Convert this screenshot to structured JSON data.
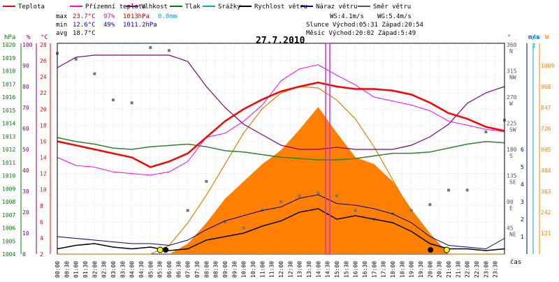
{
  "legend": [
    {
      "key": "temp",
      "label": "Teplota",
      "color": "#ff0000"
    },
    {
      "key": "dew",
      "label": "Přízemní teplota",
      "color": "#ff00ff"
    },
    {
      "key": "hum",
      "label": "Vlhkost",
      "color": "#800080"
    },
    {
      "key": "press",
      "label": "Tlak",
      "color": "#008000"
    },
    {
      "key": "rain",
      "label": "Srážky",
      "color": "#00aacc"
    },
    {
      "key": "wind",
      "label": "Rychlost větru",
      "color": "#000000"
    },
    {
      "key": "gust",
      "label": "Náraz větru",
      "color": "#000080"
    },
    {
      "key": "dir",
      "label": "Směr větru",
      "color": "#555555"
    }
  ],
  "stats": {
    "max": {
      "label": "max",
      "temp": "23.7°C",
      "hum": "97%",
      "press": "1013hPa",
      "rain": "0.0mm"
    },
    "min": {
      "label": "min",
      "temp": "12.6°C",
      "hum": "49%",
      "press": "1011.2hPa"
    },
    "avg": {
      "label": "avg",
      "temp": "18.7°C"
    }
  },
  "wind_info": {
    "ws": "WS:4.1m/s",
    "wg": "WG:5.4m/s"
  },
  "sun": {
    "text": "Slunce Východ:05:31  Západ:20:54"
  },
  "moon": {
    "text": "Měsíc  Východ:20:02  Západ:5:49"
  },
  "title": "27.7.2010",
  "axes": {
    "hpa_unit": "hPa",
    "pct_unit": "%",
    "degc_unit": "°C",
    "deg_unit": "°",
    "ms_unit": "m/s",
    "mm_unit": "mm",
    "w_unit": "W",
    "x_unit": "čas",
    "hpa_ticks": [
      "1020",
      "1019",
      "1018",
      "1017",
      "1016",
      "1015",
      "1014",
      "1013",
      "1012",
      "1011",
      "1010",
      "1009",
      "1008",
      "1007",
      "1006",
      "1005",
      "1004"
    ],
    "pct_ticks": [
      "100",
      "90",
      "80",
      "70",
      "60",
      "50",
      "40",
      "30",
      "20",
      "10",
      "0"
    ],
    "degc_ticks": [
      "28",
      "26",
      "24",
      "22",
      "20",
      "18",
      "16",
      "14",
      "12",
      "10",
      "8",
      "6",
      "4",
      "2"
    ],
    "dir_ticks": [
      {
        "v": "360",
        "n": "N",
        "deg": 360
      },
      {
        "v": "315",
        "n": "NW",
        "deg": 315
      },
      {
        "v": "270",
        "n": "W",
        "deg": 270
      },
      {
        "v": "225",
        "n": "SW",
        "deg": 225
      },
      {
        "v": "180",
        "n": "S",
        "deg": 180
      },
      {
        "v": "135",
        "n": "SE",
        "deg": 135
      },
      {
        "v": "90",
        "n": "E",
        "deg": 90
      },
      {
        "v": "45",
        "n": "NE",
        "deg": 45
      }
    ],
    "ms_ticks": [
      "6",
      "5",
      "4",
      "3",
      "2",
      "1"
    ],
    "mm_ticks": [
      "1"
    ],
    "w_ticks": [
      "1089",
      "968",
      "847",
      "726",
      "605",
      "484",
      "363",
      "242",
      "121"
    ],
    "x_ticks": [
      "00:00",
      "00:30",
      "01:00",
      "01:30",
      "02:00",
      "02:30",
      "03:00",
      "03:30",
      "04:00",
      "04:30",
      "05:00",
      "05:30",
      "06:00",
      "06:30",
      "07:00",
      "07:30",
      "08:00",
      "08:30",
      "09:00",
      "09:30",
      "10:00",
      "10:30",
      "11:00",
      "11:30",
      "12:00",
      "12:30",
      "13:00",
      "13:30",
      "14:00",
      "14:30",
      "15:00",
      "15:30",
      "16:00",
      "16:30",
      "17:00",
      "17:30",
      "18:00",
      "18:30",
      "19:00",
      "19:30",
      "20:00",
      "20:30",
      "21:00",
      "21:30",
      "22:00",
      "22:30",
      "23:00",
      "23:30"
    ]
  },
  "chart_data": {
    "type": "line",
    "title": "27.7.2010",
    "xlabel": "čas",
    "x_hours": [
      0,
      1,
      2,
      3,
      4,
      5,
      6,
      7,
      8,
      9,
      10,
      11,
      12,
      13,
      14,
      15,
      16,
      17,
      18,
      19,
      20,
      21,
      22,
      23,
      24
    ],
    "series": [
      {
        "name": "Teplota",
        "unit": "°C",
        "values": [
          16,
          15.5,
          15,
          14.5,
          14,
          12.8,
          13.5,
          14.5,
          16.5,
          18.5,
          20,
          21.2,
          22.2,
          22.8,
          23.3,
          22.8,
          22.5,
          22.5,
          22.3,
          21.8,
          20.8,
          19.5,
          18.8,
          17.8,
          17.3
        ]
      },
      {
        "name": "Přízemní teplota",
        "unit": "°C",
        "values": [
          14,
          13,
          12.8,
          12.2,
          12,
          11.8,
          12.2,
          13.5,
          16.5,
          17,
          18.5,
          20.5,
          23.5,
          25,
          25.5,
          24.2,
          23,
          21.5,
          21,
          20.5,
          19.8,
          18.5,
          18,
          17.5,
          17.2
        ]
      },
      {
        "name": "Vlhkost",
        "unit": "%",
        "values": [
          89,
          94,
          95,
          95,
          95,
          95,
          95,
          92,
          80,
          70,
          62,
          57,
          52,
          50,
          50,
          51,
          50,
          50,
          50,
          52,
          56,
          62,
          72,
          77,
          80
        ]
      },
      {
        "name": "Tlak",
        "unit": "hPa",
        "values": [
          1012.9,
          1012.6,
          1012.4,
          1012.1,
          1012.0,
          1012.2,
          1012.3,
          1012.4,
          1012.2,
          1011.9,
          1011.8,
          1011.6,
          1011.4,
          1011.3,
          1011.2,
          1011.2,
          1011.3,
          1011.5,
          1011.7,
          1011.7,
          1011.8,
          1012.1,
          1012.4,
          1012.6,
          1012.5
        ]
      },
      {
        "name": "Srážky",
        "unit": "mm",
        "values": [
          0,
          0,
          0,
          0,
          0,
          0,
          0,
          0,
          0,
          0,
          0,
          0,
          0,
          0,
          0,
          0,
          0,
          0,
          0,
          0,
          0,
          0,
          0,
          0,
          0
        ]
      },
      {
        "name": "Rychlost větru",
        "unit": "m/s",
        "values": [
          0.3,
          0.5,
          0.6,
          0.4,
          0.3,
          0.4,
          0.2,
          0.3,
          0.8,
          1.0,
          1.2,
          1.6,
          1.9,
          2.4,
          2.6,
          2.0,
          2.2,
          2.0,
          1.8,
          1.3,
          0.6,
          0.3,
          0.3,
          0.2,
          0.3
        ]
      },
      {
        "name": "Náraz větru",
        "unit": "m/s",
        "values": [
          1.0,
          0.9,
          0.8,
          0.7,
          0.6,
          0.6,
          0.5,
          0.8,
          1.4,
          1.9,
          2.2,
          2.5,
          2.7,
          3.2,
          3.4,
          2.9,
          2.8,
          2.6,
          2.3,
          1.8,
          1.0,
          0.5,
          0.4,
          0.3,
          0.9
        ]
      },
      {
        "name": "Směr větru",
        "unit": "°",
        "values": [
          345,
          335,
          310,
          265,
          260,
          355,
          350,
          75,
          125,
          55,
          45,
          75,
          90,
          100,
          105,
          100,
          75,
          60,
          70,
          75,
          85,
          110,
          110,
          210,
          230
        ]
      },
      {
        "name": "Sluneční záření",
        "unit": "W",
        "values": [
          0,
          0,
          0,
          0,
          0,
          0,
          0,
          60,
          180,
          320,
          420,
          520,
          600,
          720,
          850,
          700,
          560,
          520,
          420,
          260,
          120,
          0,
          0,
          0,
          0
        ],
        "clear_sky": [
          0,
          0,
          0,
          0,
          0,
          0,
          50,
          180,
          340,
          520,
          700,
          840,
          930,
          968,
          960,
          890,
          780,
          620,
          430,
          240,
          80,
          0,
          0,
          0,
          0
        ]
      }
    ]
  }
}
